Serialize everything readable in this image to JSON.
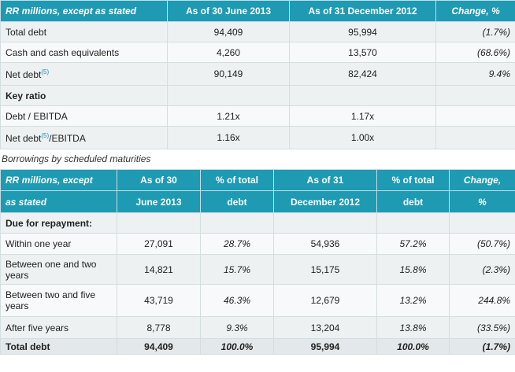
{
  "table1": {
    "headers": [
      "RR millions, except as stated",
      "As of 30 June 2013",
      "As of 31 December 2012",
      "Change, %"
    ],
    "rows": [
      {
        "label": "Total debt",
        "v1": "94,409",
        "v2": "95,994",
        "chg": "(1.7%)"
      },
      {
        "label": "Cash and cash equivalents",
        "v1": "4,260",
        "v2": "13,570",
        "chg": "(68.6%)"
      },
      {
        "label": "Net debt",
        "note": "(5)",
        "v1": "90,149",
        "v2": "82,424",
        "chg": "9.4%"
      }
    ],
    "section_label": "Key ratio",
    "ratios": [
      {
        "label": "Debt / EBITDA",
        "v1": "1.21x",
        "v2": "1.17x"
      },
      {
        "label": "Net debt",
        "note": "(5)",
        "label_suffix": "/EBITDA",
        "v1": "1.16x",
        "v2": "1.00x"
      }
    ]
  },
  "caption": "Borrowings by scheduled maturities",
  "table2": {
    "headers_top": [
      "RR millions, except",
      "As of 30",
      "% of total",
      "As of 31",
      "% of total",
      "Change,"
    ],
    "headers_bottom": [
      "as stated",
      "June 2013",
      "debt",
      "December 2012",
      "debt",
      "%"
    ],
    "section_label": "Due for repayment:",
    "rows": [
      {
        "label": "Within one year",
        "v1": "27,091",
        "p1": "28.7%",
        "v2": "54,936",
        "p2": "57.2%",
        "chg": "(50.7%)"
      },
      {
        "label": "Between one and two years",
        "v1": "14,821",
        "p1": "15.7%",
        "v2": "15,175",
        "p2": "15.8%",
        "chg": "(2.3%)"
      },
      {
        "label": "Between two and five years",
        "v1": "43,719",
        "p1": "46.3%",
        "v2": "12,679",
        "p2": "13.2%",
        "chg": "244.8%"
      },
      {
        "label": "After five years",
        "v1": "8,778",
        "p1": "9.3%",
        "v2": "13,204",
        "p2": "13.8%",
        "chg": "(33.5%)"
      }
    ],
    "total": {
      "label": "Total debt",
      "v1": "94,409",
      "p1": "100.0%",
      "v2": "95,994",
      "p2": "100.0%",
      "chg": "(1.7%)"
    }
  }
}
